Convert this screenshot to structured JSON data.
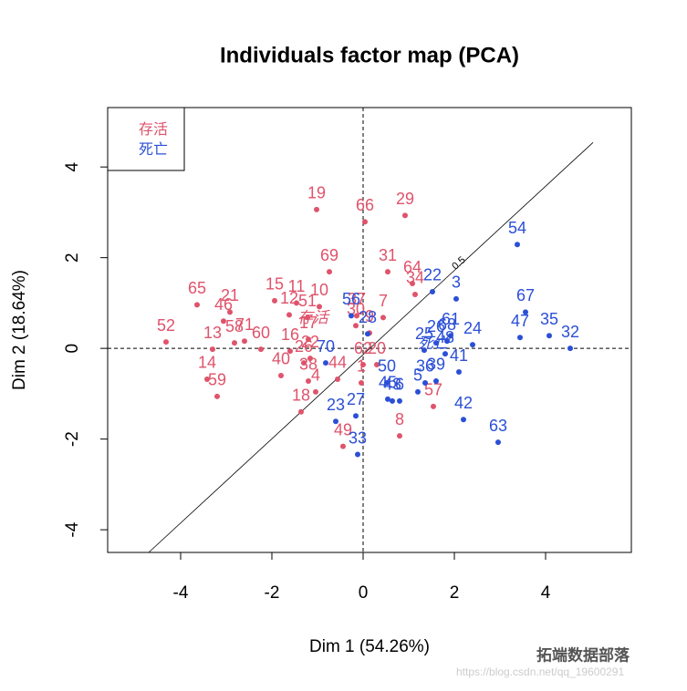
{
  "chart_data": {
    "type": "scatter",
    "title": "Individuals factor map (PCA)",
    "x_label": "Dim 1 (54.26%)",
    "y_label": "Dim 2 (18.64%)",
    "xlim": [
      -5.6,
      5.88
    ],
    "ylim": [
      -4.5,
      5.31
    ],
    "xticks": [
      -4,
      -2,
      0,
      2,
      4
    ],
    "yticks": [
      -4,
      -2,
      0,
      2,
      4
    ],
    "xline": 0,
    "yline": 0,
    "line_segment": {
      "x": [
        -4.7,
        5.04
      ],
      "y": [
        -4.5,
        4.54
      ],
      "label": "0.5"
    },
    "legend_position": "topleft",
    "series": [
      {
        "name": "存活",
        "color": "#df536b",
        "labels": [
          "19",
          "66",
          "29",
          "69",
          "31",
          "64",
          "34",
          "65",
          "21",
          "46",
          "15",
          "11",
          "10",
          "12",
          "51",
          "37",
          "7",
          "30",
          "9",
          "52",
          "13",
          "58",
          "71",
          "60",
          "16",
          "17",
          "40",
          "26",
          "22",
          "38",
          "44",
          "4",
          "14",
          "59",
          "18",
          "62",
          "20",
          "1",
          "49",
          "8",
          "57"
        ],
        "x": [
          -1.02,
          0.04,
          0.92,
          -0.74,
          0.54,
          1.08,
          1.14,
          -3.64,
          -2.92,
          -3.06,
          -1.94,
          -1.46,
          -0.96,
          -1.62,
          -1.22,
          -0.14,
          0.44,
          -0.16,
          0.14,
          -4.32,
          -3.3,
          -2.82,
          -2.6,
          -2.24,
          -1.6,
          -1.2,
          -1.8,
          -1.3,
          -1.16,
          -1.2,
          -0.56,
          -1.04,
          -3.42,
          -3.2,
          -1.36,
          0,
          0.3,
          -0.04,
          -0.44,
          0.8,
          1.54
        ],
        "y": [
          3.06,
          2.79,
          2.93,
          1.69,
          1.69,
          1.43,
          1.19,
          0.96,
          0.8,
          0.6,
          1.05,
          1.0,
          0.92,
          0.74,
          0.68,
          0.72,
          0.68,
          0.5,
          0.34,
          0.14,
          -0.02,
          0.12,
          0.16,
          -0.02,
          -0.06,
          0.2,
          -0.6,
          -0.32,
          -0.22,
          -0.72,
          -0.68,
          -0.96,
          -0.68,
          -1.06,
          -1.4,
          -0.36,
          -0.36,
          -0.76,
          -2.16,
          -1.93,
          -1.28
        ],
        "centroid": [
          -1.1,
          0.64
        ]
      },
      {
        "name": "死亡",
        "color": "#2b4fd6",
        "labels": [
          "54",
          "67",
          "47",
          "35",
          "32",
          "22",
          "3",
          "56",
          "28",
          "61",
          "25",
          "26",
          "68",
          "24",
          "48",
          "41",
          "39",
          "36",
          "5",
          "50",
          "43",
          "45",
          "6",
          "42",
          "63",
          "23",
          "27",
          "33",
          "70"
        ],
        "x": [
          3.38,
          3.56,
          3.44,
          4.08,
          4.54,
          1.52,
          2.04,
          -0.26,
          0.1,
          1.92,
          1.34,
          1.6,
          1.84,
          2.4,
          1.8,
          2.1,
          1.6,
          1.36,
          1.2,
          0.52,
          0.64,
          0.54,
          0.8,
          2.2,
          2.96,
          -0.6,
          -0.16,
          -0.12,
          -0.82
        ],
        "y": [
          2.29,
          0.8,
          0.24,
          0.28,
          0,
          1.25,
          1.09,
          0.72,
          0.32,
          0.28,
          -0.04,
          0.12,
          0.16,
          0.08,
          -0.12,
          -0.52,
          -0.72,
          -0.76,
          -0.96,
          -0.76,
          -1.16,
          -1.12,
          -1.16,
          -1.57,
          -2.07,
          -1.61,
          -1.49,
          -2.34,
          -0.32
        ],
        "centroid": [
          1.54,
          0.08
        ]
      }
    ],
    "watermark": "拓端数据部落",
    "watermark_url": "https://blog.csdn.net/qq_19600291"
  }
}
